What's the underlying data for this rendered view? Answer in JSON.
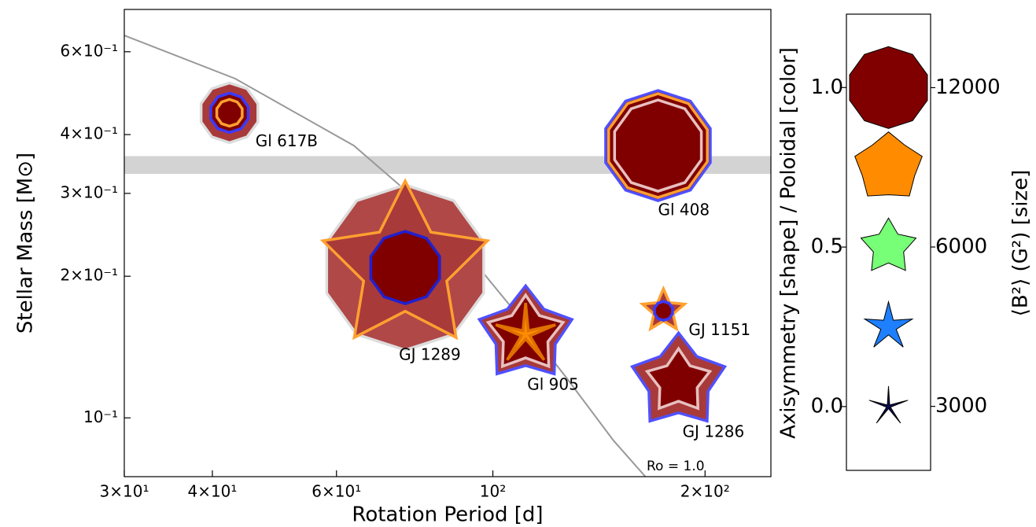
{
  "chart_data": {
    "type": "scatter",
    "xlabel": "Rotation Period [d]",
    "ylabel": "Stellar Mass [M⊙]",
    "xscale": "log",
    "yscale": "log",
    "xlim": [
      30,
      248
    ],
    "ylim": [
      0.075,
      0.738
    ],
    "xticks": [
      {
        "value": 30,
        "label": "3×10¹"
      },
      {
        "value": 40,
        "label": "4×10¹"
      },
      {
        "value": 60,
        "label": "6×10¹"
      },
      {
        "value": 100,
        "label": "10²"
      },
      {
        "value": 200,
        "label": "2×10²"
      }
    ],
    "yticks": [
      {
        "value": 0.1,
        "label": "10⁻¹"
      },
      {
        "value": 0.2,
        "label": "2×10⁻¹"
      },
      {
        "value": 0.3,
        "label": "3×10⁻¹"
      },
      {
        "value": 0.4,
        "label": "4×10⁻¹"
      },
      {
        "value": 0.6,
        "label": "6×10⁻¹"
      }
    ],
    "band": {
      "ylim": [
        0.33,
        0.36
      ],
      "color": "#d3d3d3"
    },
    "curve": {
      "label": "Ro = 1.0",
      "color": "#999999",
      "x": [
        30,
        43.1,
        63.5,
        84.2,
        106.2,
        127.0,
        148.3,
        164.6
      ],
      "y": [
        0.65,
        0.526,
        0.379,
        0.263,
        0.172,
        0.122,
        0.0895,
        0.075
      ]
    },
    "points": [
      {
        "label": "Gl 617B",
        "period": 42.3,
        "mass": 0.445,
        "layers": [
          {
            "size": 6400,
            "axisymmetry": 1.0,
            "fill": "#a83a3a",
            "edge": "#dddddd"
          },
          {
            "size": 2770,
            "axisymmetry": 1.0,
            "fill": "#800000",
            "edge": "#3a3aff"
          },
          {
            "size": 1280,
            "axisymmetry": 1.0,
            "fill": "#800000",
            "edge": "#ffa030"
          }
        ]
      },
      {
        "label": "Gl 408",
        "period": 171.5,
        "mass": 0.379,
        "layers": [
          {
            "size": 21750,
            "axisymmetry": 1.0,
            "fill": "#800000",
            "edge": "#5050ff"
          },
          {
            "size": 19330,
            "axisymmetry": 1.0,
            "fill": "#800000",
            "edge": "#ffa030"
          },
          {
            "size": 14930,
            "axisymmetry": 1.0,
            "fill": "#800000",
            "edge": "#e8c0c0"
          }
        ]
      },
      {
        "label": "GJ 1289",
        "period": 75.1,
        "mass": 0.2087,
        "layers": [
          {
            "size": 48900,
            "axisymmetry": 0.96,
            "fill": "#b04848",
            "edge": "#dddddd"
          },
          {
            "size": 53700,
            "axisymmetry": 0.45,
            "fill": "#a83a3a",
            "edge": "#ffa030"
          },
          {
            "size": 9390,
            "axisymmetry": 1.0,
            "fill": "#800000",
            "edge": "#2020d0"
          }
        ]
      },
      {
        "label": "GJ 1151",
        "period": 174.6,
        "mass": 0.1688,
        "layers": [
          {
            "size": 3480,
            "axisymmetry": 0.4,
            "fill": "#a83a3a",
            "edge": "#ffa030"
          },
          {
            "size": 640,
            "axisymmetry": 1.0,
            "fill": "#800000",
            "edge": "#3a3aff"
          }
        ]
      },
      {
        "label": "Gl 905",
        "period": 111.3,
        "mass": 0.1504,
        "layers": [
          {
            "size": 17000,
            "axisymmetry": 0.6,
            "fill": "#a83a3a",
            "edge": "#5050ff"
          },
          {
            "size": 11100,
            "axisymmetry": 0.55,
            "fill": "#800000",
            "edge": "#e8c0c0"
          },
          {
            "size": 7100,
            "axisymmetry": 0.05,
            "fill": "#ff8c00",
            "edge": "#e07000"
          }
        ]
      },
      {
        "label": "GJ 1286",
        "period": 183.4,
        "mass": 0.1194,
        "layers": [
          {
            "size": 17000,
            "axisymmetry": 0.6,
            "fill": "#a83a3a",
            "edge": "#5050ff"
          },
          {
            "size": 7800,
            "axisymmetry": 0.55,
            "fill": "#800000",
            "edge": "#e8c0c0"
          }
        ]
      }
    ],
    "legend": {
      "ylabel": "Axisymmetry [shape] / Poloidal [color]",
      "y2label": "⟨B²⟩ (G²) [size]",
      "ylim": [
        -0.2,
        1.23
      ],
      "yticks": [
        {
          "value": 0,
          "label": "0.0"
        },
        0.5,
        {
          "value": 1,
          "label": "1.0"
        }
      ],
      "y2scale": "log",
      "y2lim": [
        2271,
        16520
      ],
      "y2ticks": [
        3000,
        6000,
        12000
      ],
      "axisymmetry": [
        1.0,
        0.75,
        0.5,
        0.25,
        0.0
      ],
      "colors": [
        "#800000",
        "#ff8c00",
        "#77ff77",
        "#1e7fff",
        "#0a0a50"
      ],
      "sizes": [
        12000,
        9000,
        6000,
        4500,
        3000
      ]
    }
  }
}
